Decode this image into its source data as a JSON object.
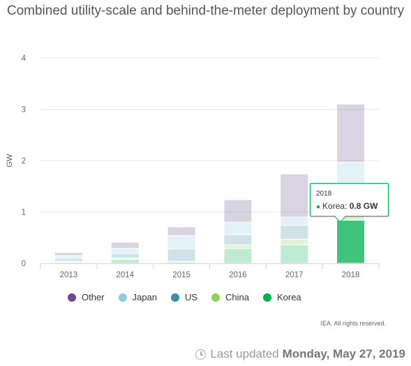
{
  "chart_data": {
    "type": "bar",
    "stacked": true,
    "title": "Combined utility-scale and behind-the-meter deployment by country",
    "ylabel": "GW",
    "xlabel": "",
    "ylim": [
      0,
      4
    ],
    "yticks": [
      "0",
      "1",
      "2",
      "3",
      "4"
    ],
    "categories": [
      "2013",
      "2014",
      "2015",
      "2016",
      "2017",
      "2018"
    ],
    "series": [
      {
        "name": "Korea",
        "color": "#00b050",
        "values": [
          0.02,
          0.08,
          0.03,
          0.29,
          0.36,
          0.84
        ]
      },
      {
        "name": "China",
        "color": "#8fd05a",
        "values": [
          0.02,
          0.02,
          0.01,
          0.07,
          0.11,
          0.16
        ]
      },
      {
        "name": "US",
        "color": "#3a8fa6",
        "values": [
          0.06,
          0.09,
          0.24,
          0.2,
          0.27,
          0.56
        ]
      },
      {
        "name": "Japan",
        "color": "#8fcbdf",
        "values": [
          0.05,
          0.1,
          0.26,
          0.24,
          0.16,
          0.41
        ]
      },
      {
        "name": "Other",
        "color": "#6b4f8c",
        "values": [
          0.06,
          0.12,
          0.17,
          0.44,
          0.84,
          1.13
        ]
      }
    ],
    "highlight_index": 5,
    "grid": true,
    "legend_position": "bottom"
  },
  "legend_order": [
    {
      "name": "Other",
      "color": "#6b4f8c"
    },
    {
      "name": "Japan",
      "color": "#8fcbdf"
    },
    {
      "name": "US",
      "color": "#3a8fa6"
    },
    {
      "name": "China",
      "color": "#8fd05a"
    },
    {
      "name": "Korea",
      "color": "#00b050"
    }
  ],
  "tooltip": {
    "header": "2018",
    "series": "Korea",
    "value_text": "0.8 GW"
  },
  "credits": "IEA. All rights reserved.",
  "footer": {
    "prefix": "Last updated",
    "date": "Monday, May 27, 2019"
  }
}
